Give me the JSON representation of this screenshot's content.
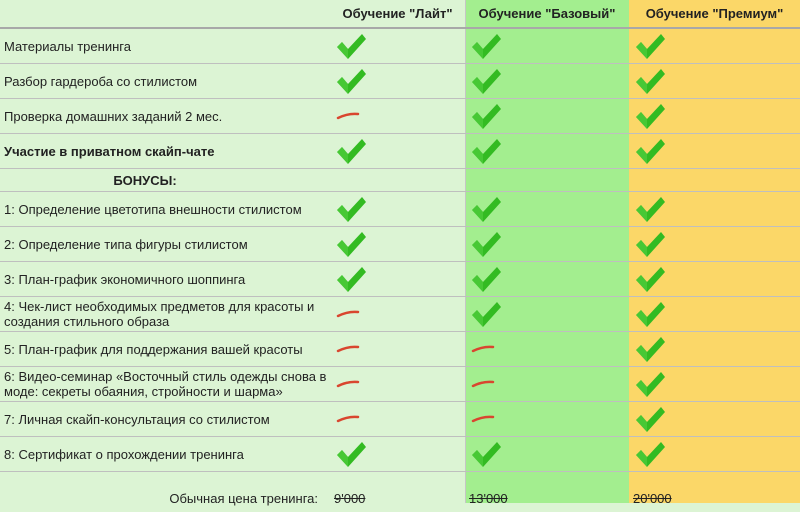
{
  "header": {
    "lite": "Обучение \"Лайт\"",
    "basic": "Обучение \"Базовый\"",
    "premium": "Обучение \"Премиум\""
  },
  "colors": {
    "check": "#33bb22",
    "dash": "#d9462f",
    "basic_bg": "#a3ee8f",
    "premium_bg": "#fbd768",
    "page_bg": "#dcf4d4"
  },
  "rows": [
    {
      "label": "Материалы тренинга",
      "lite": "check",
      "basic": "check",
      "premium": "check"
    },
    {
      "label": "Разбор гардероба со стилистом",
      "lite": "check",
      "basic": "check",
      "premium": "check"
    },
    {
      "label": "Проверка домашних заданий 2 мес.",
      "lite": "dash",
      "basic": "check",
      "premium": "check"
    },
    {
      "label": "Участие в приватном скайп-чате",
      "lite": "check",
      "basic": "check",
      "premium": "check",
      "bold": true
    },
    {
      "label": "БОНУСЫ:",
      "bonus": true
    },
    {
      "label": "1: Определение цветотипа внешности стилистом",
      "lite": "check",
      "basic": "check",
      "premium": "check"
    },
    {
      "label": "2: Определение типа фигуры стилистом",
      "lite": "check",
      "basic": "check",
      "premium": "check"
    },
    {
      "label": "3: План-график экономичного шоппинга",
      "lite": "check",
      "basic": "check",
      "premium": "check"
    },
    {
      "label": "4: Чек-лист необходимых предметов для красоты и создания стильного образа",
      "lite": "dash",
      "basic": "check",
      "premium": "check"
    },
    {
      "label": "5: План-график для поддержания вашей красоты",
      "lite": "dash",
      "basic": "dash",
      "premium": "check"
    },
    {
      "label": "6: Видео-семинар «Восточный стиль одежды снова в моде: секреты обаяния, стройности и шарма»",
      "lite": "dash",
      "basic": "dash",
      "premium": "check"
    },
    {
      "label": "7: Личная скайп-консультация со стилистом",
      "lite": "dash",
      "basic": "dash",
      "premium": "check"
    },
    {
      "label": "8: Сертификат о прохождении тренинга",
      "lite": "check",
      "basic": "check",
      "premium": "check"
    }
  ],
  "price": {
    "label": "Обычная цена тренинга:",
    "lite": "9'000",
    "basic": "13'000",
    "premium": "20'000"
  },
  "icons": {
    "yes": "checkmark-icon",
    "no": "dash-icon"
  }
}
